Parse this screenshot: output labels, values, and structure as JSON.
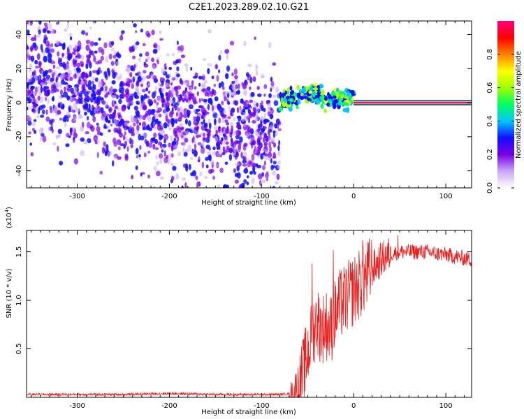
{
  "title": "C2E1.2023.289.02.10.G21",
  "chart_data": [
    {
      "type": "heatmap",
      "title": "C2E1.2023.289.02.10.G21",
      "xlabel": "Height of straight line (km)",
      "ylabel": "Frequency (Hz)",
      "xlim": [
        -355,
        128
      ],
      "ylim": [
        -50,
        48
      ],
      "x_ticks": [
        -300,
        -200,
        -100,
        0,
        100
      ],
      "y_ticks": [
        -40,
        -20,
        0,
        20,
        40
      ],
      "grid": false,
      "colorbar": {
        "label": "Normalized spectral amplitude",
        "range": [
          0,
          1
        ],
        "ticks": [
          0.0,
          0.2,
          0.4,
          0.6,
          0.8
        ],
        "colormap": [
          "#ffffff",
          "#c9a7f5",
          "#7a00e6",
          "#1010ff",
          "#00c8ff",
          "#00ff60",
          "#a0ff00",
          "#ffff00",
          "#ff8000",
          "#ff0000",
          "#ff0080"
        ]
      },
      "regions": [
        {
          "x_range": [
            -355,
            -80
          ],
          "description_values": {
            "freq_center_start": 15,
            "freq_center_end": -20,
            "spread_hz": 28,
            "amplitude": 0.2
          }
        },
        {
          "x_range": [
            -80,
            0
          ],
          "description_values": {
            "freq_center": 2,
            "spread_hz": 6,
            "amplitude": 0.45
          }
        },
        {
          "x_range": [
            0,
            128
          ],
          "description_values": {
            "freq_center": 0,
            "spread_hz": 1.5,
            "amplitude": 0.95
          }
        }
      ]
    },
    {
      "type": "line",
      "xlabel": "Height of straight line (km)",
      "ylabel": "SNR (10 * v/v)",
      "y_multiplier": "(x10",
      "y_multiplier_exp": "4",
      "y_multiplier_close": ")",
      "xlim": [
        -355,
        128
      ],
      "ylim": [
        0,
        1.72
      ],
      "x_ticks": [
        -300,
        -200,
        -100,
        0,
        100
      ],
      "y_ticks": [
        0.5,
        1.0,
        1.5
      ],
      "y_tick_labels": [
        "0.5",
        "1.0",
        "1.5"
      ],
      "grid": false,
      "series": [
        {
          "color": "#e8201e",
          "x": [
            -355,
            -300,
            -250,
            -200,
            -150,
            -100,
            -80,
            -65,
            -60,
            -55,
            -50,
            -45,
            -40,
            -35,
            -30,
            -25,
            -20,
            -15,
            -10,
            -5,
            0,
            5,
            10,
            20,
            30,
            40,
            50,
            60,
            70,
            80,
            90,
            100,
            110,
            128
          ],
          "values": [
            0.03,
            0.03,
            0.03,
            0.04,
            0.03,
            0.03,
            0.03,
            0.04,
            0.1,
            0.25,
            0.45,
            0.65,
            0.8,
            0.7,
            0.75,
            0.7,
            0.85,
            0.95,
            1.0,
            1.05,
            1.1,
            1.15,
            1.2,
            1.32,
            1.42,
            1.48,
            1.5,
            1.5,
            1.5,
            1.5,
            1.48,
            1.47,
            1.45,
            1.42
          ],
          "peaks": [
            [
              -45,
              1.38
            ],
            [
              -22,
              1.52
            ],
            [
              10,
              1.62
            ],
            [
              48,
              1.67
            ]
          ]
        }
      ]
    }
  ]
}
